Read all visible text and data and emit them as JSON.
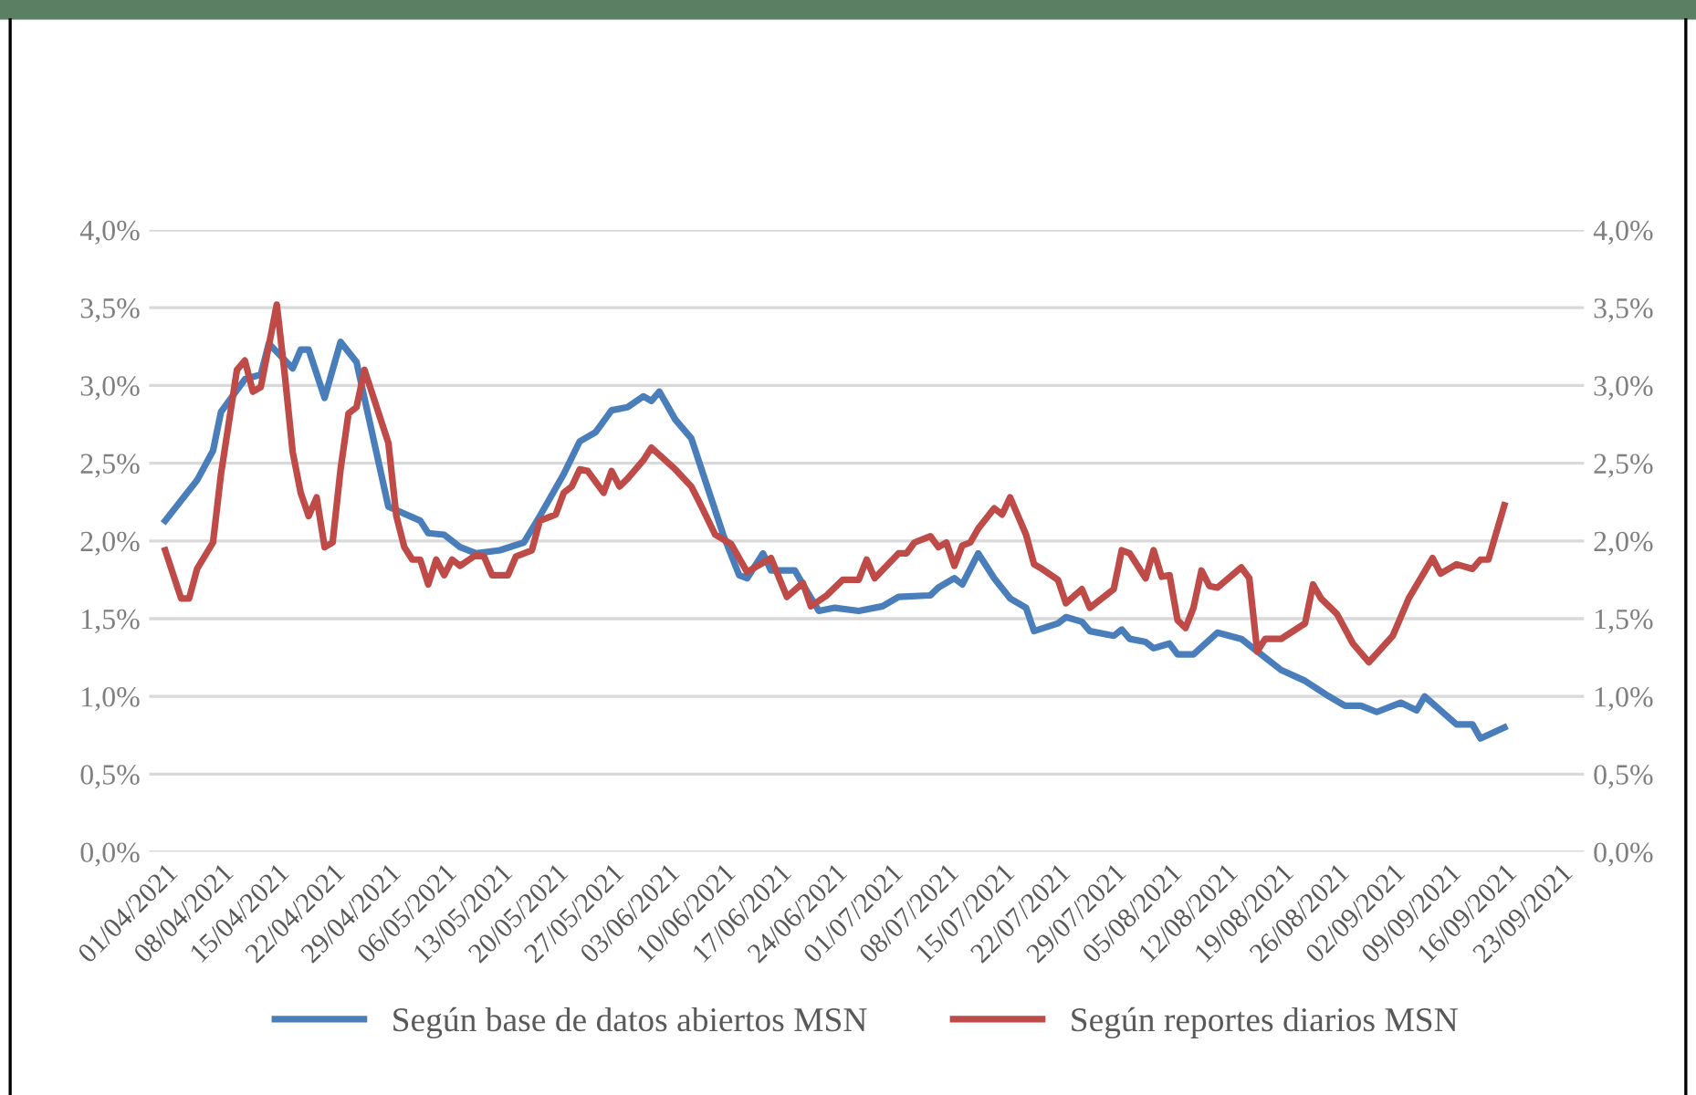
{
  "chart_data": {
    "type": "line",
    "x": [
      "2021-04-01",
      "2021-04-05",
      "2021-04-07",
      "2021-04-08",
      "2021-04-11",
      "2021-04-13",
      "2021-04-14",
      "2021-04-17",
      "2021-04-18",
      "2021-04-19",
      "2021-04-21",
      "2021-04-23",
      "2021-04-25",
      "2021-04-29",
      "2021-05-03",
      "2021-05-04",
      "2021-05-06",
      "2021-05-08",
      "2021-05-10",
      "2021-05-13",
      "2021-05-16",
      "2021-05-18",
      "2021-05-21",
      "2021-05-23",
      "2021-05-25",
      "2021-05-27",
      "2021-05-29",
      "2021-05-31",
      "2021-06-01",
      "2021-06-02",
      "2021-06-04",
      "2021-06-06",
      "2021-06-08",
      "2021-06-10",
      "2021-06-12",
      "2021-06-13",
      "2021-06-15",
      "2021-06-16",
      "2021-06-19",
      "2021-06-20",
      "2021-06-22",
      "2021-06-24",
      "2021-06-27",
      "2021-06-30",
      "2021-07-02",
      "2021-07-06",
      "2021-07-07",
      "2021-07-09",
      "2021-07-10",
      "2021-07-12",
      "2021-07-14",
      "2021-07-16",
      "2021-07-18",
      "2021-07-19",
      "2021-07-22",
      "2021-07-23",
      "2021-07-25",
      "2021-07-26",
      "2021-07-29",
      "2021-07-30",
      "2021-07-31",
      "2021-08-02",
      "2021-08-03",
      "2021-08-05",
      "2021-08-06",
      "2021-08-08",
      "2021-08-11",
      "2021-08-14",
      "2021-08-16",
      "2021-08-19",
      "2021-08-22",
      "2021-08-25",
      "2021-08-27",
      "2021-08-29",
      "2021-08-31",
      "2021-09-03",
      "2021-09-05",
      "2021-09-06",
      "2021-09-10",
      "2021-09-12",
      "2021-09-13",
      "2021-09-16"
    ],
    "series": [
      {
        "name": "Según base de datos abiertos MSN",
        "color": "#4a7ebb",
        "values": [
          2.13,
          2.39,
          2.58,
          2.83,
          3.04,
          3.07,
          3.27,
          3.11,
          3.23,
          3.23,
          2.92,
          3.28,
          3.15,
          2.22,
          2.13,
          2.05,
          2.04,
          1.96,
          1.92,
          1.94,
          1.99,
          2.16,
          2.43,
          2.64,
          2.7,
          2.84,
          2.86,
          2.93,
          2.9,
          2.96,
          2.78,
          2.66,
          2.35,
          2.04,
          1.78,
          1.76,
          1.92,
          1.81,
          1.81,
          1.72,
          1.55,
          1.57,
          1.55,
          1.58,
          1.64,
          1.65,
          1.7,
          1.76,
          1.72,
          1.92,
          1.76,
          1.63,
          1.57,
          1.42,
          1.47,
          1.51,
          1.48,
          1.42,
          1.39,
          1.43,
          1.37,
          1.35,
          1.31,
          1.34,
          1.27,
          1.27,
          1.41,
          1.37,
          1.29,
          1.17,
          1.1,
          1.0,
          0.94,
          0.94,
          0.9,
          0.96,
          0.91,
          1.0,
          0.82,
          0.82,
          0.73,
          0.8
        ]
      },
      {
        "name": "Según reportes diarios MSN",
        "color": "#be4b48",
        "x": [
          "2021-04-01",
          "2021-04-03",
          "2021-04-04",
          "2021-04-05",
          "2021-04-07",
          "2021-04-08",
          "2021-04-10",
          "2021-04-11",
          "2021-04-12",
          "2021-04-13",
          "2021-04-15",
          "2021-04-16",
          "2021-04-17",
          "2021-04-18",
          "2021-04-19",
          "2021-04-20",
          "2021-04-21",
          "2021-04-22",
          "2021-04-23",
          "2021-04-24",
          "2021-04-25",
          "2021-04-26",
          "2021-04-29",
          "2021-04-30",
          "2021-05-01",
          "2021-05-02",
          "2021-05-03",
          "2021-05-04",
          "2021-05-05",
          "2021-05-06",
          "2021-05-07",
          "2021-05-08",
          "2021-05-10",
          "2021-05-11",
          "2021-05-12",
          "2021-05-14",
          "2021-05-15",
          "2021-05-17",
          "2021-05-18",
          "2021-05-20",
          "2021-05-21",
          "2021-05-22",
          "2021-05-23",
          "2021-05-24",
          "2021-05-26",
          "2021-05-27",
          "2021-05-28",
          "2021-05-29",
          "2021-05-31",
          "2021-06-01",
          "2021-06-04",
          "2021-06-06",
          "2021-06-07",
          "2021-06-09",
          "2021-06-11",
          "2021-06-13",
          "2021-06-16",
          "2021-06-18",
          "2021-06-20",
          "2021-06-21",
          "2021-06-23",
          "2021-06-25",
          "2021-06-27",
          "2021-06-28",
          "2021-06-29",
          "2021-07-02",
          "2021-07-03",
          "2021-07-04",
          "2021-07-06",
          "2021-07-07",
          "2021-07-08",
          "2021-07-09",
          "2021-07-10",
          "2021-07-11",
          "2021-07-12",
          "2021-07-14",
          "2021-07-15",
          "2021-07-16",
          "2021-07-18",
          "2021-07-19",
          "2021-07-20",
          "2021-07-22",
          "2021-07-23",
          "2021-07-25",
          "2021-07-26",
          "2021-07-29",
          "2021-07-30",
          "2021-07-31",
          "2021-08-02",
          "2021-08-03",
          "2021-08-04",
          "2021-08-05",
          "2021-08-06",
          "2021-08-07",
          "2021-08-08",
          "2021-08-09",
          "2021-08-10",
          "2021-08-11",
          "2021-08-14",
          "2021-08-15",
          "2021-08-16",
          "2021-08-17",
          "2021-08-19",
          "2021-08-22",
          "2021-08-23",
          "2021-08-24",
          "2021-08-26",
          "2021-08-28",
          "2021-08-30",
          "2021-09-02",
          "2021-09-04",
          "2021-09-07",
          "2021-09-08",
          "2021-09-10",
          "2021-09-12",
          "2021-09-13",
          "2021-09-14",
          "2021-09-16"
        ],
        "values": [
          1.94,
          1.63,
          1.63,
          1.82,
          1.99,
          2.43,
          3.1,
          3.16,
          2.96,
          2.99,
          3.52,
          3.07,
          2.57,
          2.31,
          2.16,
          2.28,
          1.96,
          1.99,
          2.46,
          2.82,
          2.86,
          3.1,
          2.63,
          2.16,
          1.96,
          1.88,
          1.88,
          1.72,
          1.88,
          1.78,
          1.88,
          1.84,
          1.91,
          1.9,
          1.78,
          1.78,
          1.9,
          1.94,
          2.13,
          2.17,
          2.31,
          2.35,
          2.46,
          2.45,
          2.31,
          2.45,
          2.35,
          2.4,
          2.52,
          2.6,
          2.46,
          2.35,
          2.25,
          2.04,
          1.98,
          1.8,
          1.89,
          1.64,
          1.73,
          1.58,
          1.65,
          1.75,
          1.75,
          1.88,
          1.76,
          1.92,
          1.92,
          1.99,
          2.03,
          1.96,
          1.99,
          1.84,
          1.97,
          1.99,
          2.08,
          2.21,
          2.17,
          2.28,
          2.04,
          1.85,
          1.82,
          1.75,
          1.6,
          1.69,
          1.57,
          1.69,
          1.94,
          1.92,
          1.76,
          1.94,
          1.77,
          1.78,
          1.49,
          1.44,
          1.57,
          1.81,
          1.71,
          1.7,
          1.83,
          1.76,
          1.29,
          1.37,
          1.37,
          1.47,
          1.72,
          1.63,
          1.53,
          1.34,
          1.22,
          1.39,
          1.63,
          1.89,
          1.79,
          1.85,
          1.82,
          1.88,
          1.88,
          2.23
        ]
      }
    ],
    "xlim": [
      "2021-03-30",
      "2021-09-26"
    ],
    "xticks": [
      {
        "value": "2021-04-01",
        "label": "01/04/2021"
      },
      {
        "value": "2021-04-08",
        "label": "08/04/2021"
      },
      {
        "value": "2021-04-15",
        "label": "15/04/2021"
      },
      {
        "value": "2021-04-22",
        "label": "22/04/2021"
      },
      {
        "value": "2021-04-29",
        "label": "29/04/2021"
      },
      {
        "value": "2021-05-06",
        "label": "06/05/2021"
      },
      {
        "value": "2021-05-13",
        "label": "13/05/2021"
      },
      {
        "value": "2021-05-20",
        "label": "20/05/2021"
      },
      {
        "value": "2021-05-27",
        "label": "27/05/2021"
      },
      {
        "value": "2021-06-03",
        "label": "03/06/2021"
      },
      {
        "value": "2021-06-10",
        "label": "10/06/2021"
      },
      {
        "value": "2021-06-17",
        "label": "17/06/2021"
      },
      {
        "value": "2021-06-24",
        "label": "24/06/2021"
      },
      {
        "value": "2021-07-01",
        "label": "01/07/2021"
      },
      {
        "value": "2021-07-08",
        "label": "08/07/2021"
      },
      {
        "value": "2021-07-15",
        "label": "15/07/2021"
      },
      {
        "value": "2021-07-22",
        "label": "22/07/2021"
      },
      {
        "value": "2021-07-29",
        "label": "29/07/2021"
      },
      {
        "value": "2021-08-05",
        "label": "05/08/2021"
      },
      {
        "value": "2021-08-12",
        "label": "12/08/2021"
      },
      {
        "value": "2021-08-19",
        "label": "19/08/2021"
      },
      {
        "value": "2021-08-26",
        "label": "26/08/2021"
      },
      {
        "value": "2021-09-02",
        "label": "02/09/2021"
      },
      {
        "value": "2021-09-09",
        "label": "09/09/2021"
      },
      {
        "value": "2021-09-16",
        "label": "16/09/2021"
      },
      {
        "value": "2021-09-23",
        "label": "23/09/2021"
      }
    ],
    "ylim": [
      0,
      4
    ],
    "yticks": [
      {
        "value": 0,
        "label": "0,0%"
      },
      {
        "value": 0.5,
        "label": "0,5%"
      },
      {
        "value": 1,
        "label": "1,0%"
      },
      {
        "value": 1.5,
        "label": "1,5%"
      },
      {
        "value": 2,
        "label": "2,0%"
      },
      {
        "value": 2.5,
        "label": "2,5%"
      },
      {
        "value": 3,
        "label": "3,0%"
      },
      {
        "value": 3.5,
        "label": "3,5%"
      },
      {
        "value": 4,
        "label": "4,0%"
      }
    ],
    "y2lim": [
      0,
      4
    ],
    "y2ticks": [
      {
        "value": 0,
        "label": "0,0%"
      },
      {
        "value": 0.5,
        "label": "0,5%"
      },
      {
        "value": 1,
        "label": "1,0%"
      },
      {
        "value": 1.5,
        "label": "1,5%"
      },
      {
        "value": 2,
        "label": "2,0%"
      },
      {
        "value": 2.5,
        "label": "2,5%"
      },
      {
        "value": 3,
        "label": "3,0%"
      },
      {
        "value": 3.5,
        "label": "3,5%"
      },
      {
        "value": 4,
        "label": "4,0%"
      }
    ],
    "grid": "y",
    "legend": "bottom",
    "marker": "none",
    "line_style": "solid"
  }
}
